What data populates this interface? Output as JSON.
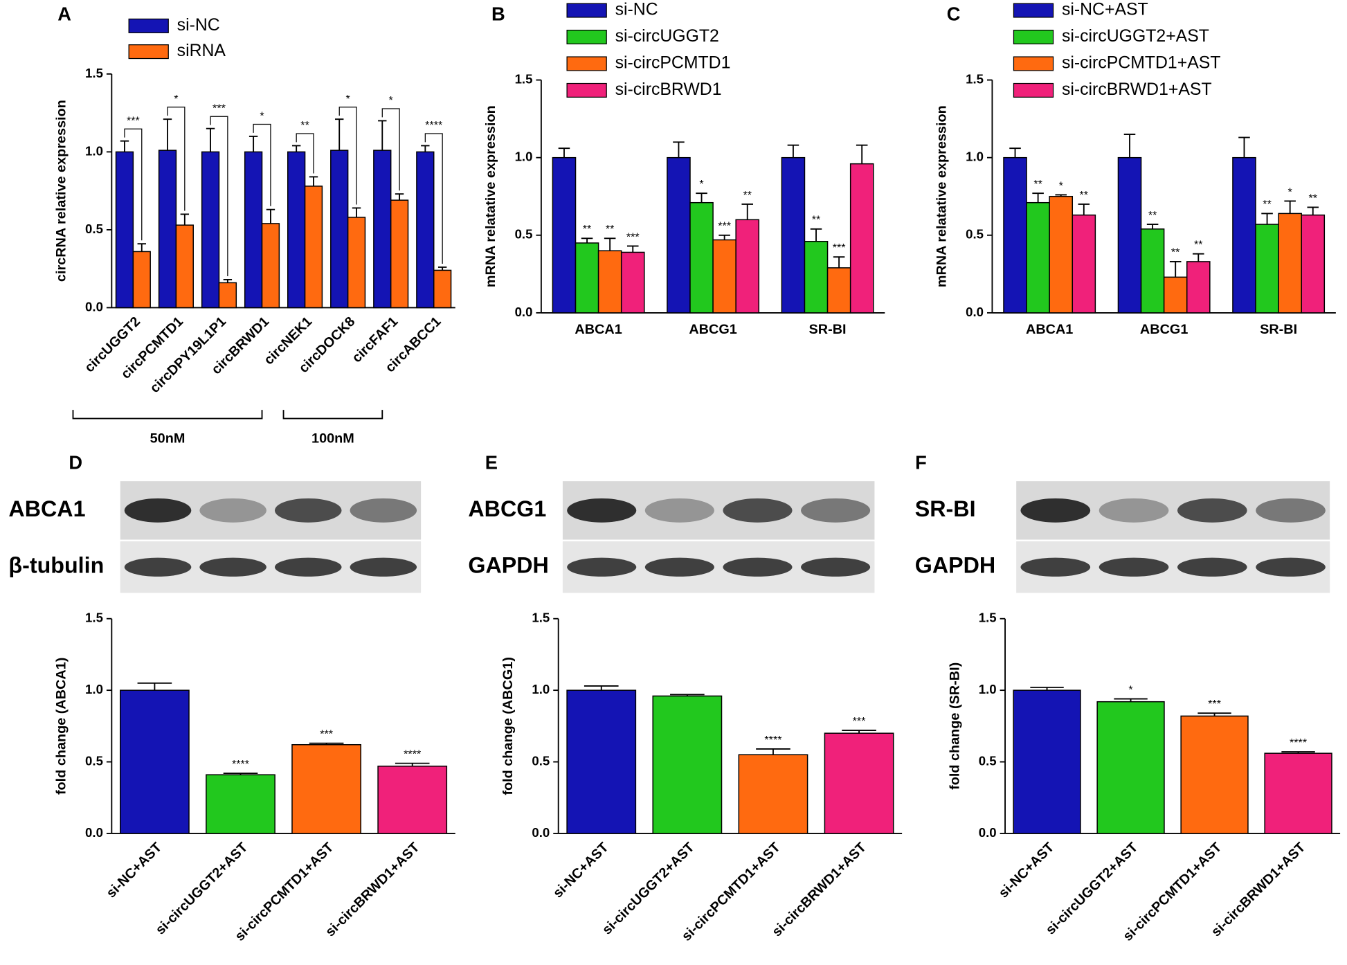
{
  "chart_data": [
    {
      "panel": "A",
      "type": "bar",
      "y_label": "circRNA relative expression",
      "categories": [
        "circUGGT2",
        "circPCMTD1",
        "circDPY19L1P1",
        "circBRWD1",
        "circNEK1",
        "circDOCK8",
        "circFAF1",
        "circABCC1"
      ],
      "category_groups": [
        "50nM",
        "50nM",
        "50nM",
        "50nM",
        "100nM",
        "100nM",
        null,
        null
      ],
      "series": [
        {
          "name": "si-NC",
          "color": "#1414b4",
          "values": [
            1.0,
            1.01,
            1.0,
            1.0,
            1.0,
            1.01,
            1.01,
            1.0
          ],
          "errors": [
            0.07,
            0.2,
            0.15,
            0.1,
            0.04,
            0.2,
            0.19,
            0.04
          ]
        },
        {
          "name": "siRNA",
          "color": "#ff6a10",
          "values": [
            0.36,
            0.53,
            0.16,
            0.54,
            0.78,
            0.58,
            0.69,
            0.24
          ],
          "errors": [
            0.05,
            0.07,
            0.02,
            0.09,
            0.06,
            0.06,
            0.04,
            0.02
          ],
          "significance": [
            "***",
            "*",
            "***",
            "*",
            "**",
            "*",
            "*",
            "****"
          ]
        }
      ],
      "ylim": [
        0,
        1.5
      ],
      "yticks": [
        {
          "value": 0,
          "label": "0.0"
        },
        0.5,
        {
          "value": 1,
          "label": "1.0"
        },
        1.5
      ]
    },
    {
      "panel": "B",
      "type": "bar",
      "y_label": "mRNA relatative expression",
      "categories": [
        "ABCA1",
        "ABCG1",
        "SR-BI"
      ],
      "series": [
        {
          "name": "si-NC",
          "color": "#1414b4",
          "values": [
            1.0,
            1.0,
            1.0
          ],
          "errors": [
            0.06,
            0.1,
            0.08
          ]
        },
        {
          "name": "si-circUGGT2",
          "color": "#22c81e",
          "values": [
            0.45,
            0.71,
            0.46
          ],
          "errors": [
            0.03,
            0.06,
            0.08
          ],
          "significance": [
            "**",
            "*",
            "**"
          ]
        },
        {
          "name": "si-circPCMTD1",
          "color": "#ff6a10",
          "values": [
            0.4,
            0.47,
            0.29
          ],
          "errors": [
            0.08,
            0.03,
            0.07
          ],
          "significance": [
            "**",
            "***",
            "***"
          ]
        },
        {
          "name": "si-circBRWD1",
          "color": "#f0217a",
          "values": [
            0.39,
            0.6,
            0.96
          ],
          "errors": [
            0.04,
            0.1,
            0.12
          ],
          "significance": [
            "***",
            "**",
            null
          ]
        }
      ],
      "ylim": [
        0,
        1.5
      ],
      "yticks": [
        {
          "value": 0,
          "label": "0.0"
        },
        0.5,
        {
          "value": 1,
          "label": "1.0"
        },
        1.5
      ]
    },
    {
      "panel": "C",
      "type": "bar",
      "y_label": "mRNA relatative expression",
      "categories": [
        "ABCA1",
        "ABCG1",
        "SR-BI"
      ],
      "series": [
        {
          "name": "si-NC+AST",
          "color": "#1414b4",
          "values": [
            1.0,
            1.0,
            1.0
          ],
          "errors": [
            0.06,
            0.15,
            0.13
          ]
        },
        {
          "name": "si-circUGGT2+AST",
          "color": "#22c81e",
          "values": [
            0.71,
            0.54,
            0.57
          ],
          "errors": [
            0.06,
            0.03,
            0.07
          ],
          "significance": [
            "**",
            "**",
            "**"
          ]
        },
        {
          "name": "si-circPCMTD1+AST",
          "color": "#ff6a10",
          "values": [
            0.75,
            0.23,
            0.64
          ],
          "errors": [
            0.01,
            0.1,
            0.08
          ],
          "significance": [
            "*",
            "**",
            "*"
          ]
        },
        {
          "name": "si-circBRWD1+AST",
          "color": "#f0217a",
          "values": [
            0.63,
            0.33,
            0.63
          ],
          "errors": [
            0.07,
            0.05,
            0.05
          ],
          "significance": [
            "**",
            "**",
            "**"
          ]
        }
      ],
      "ylim": [
        0,
        1.5
      ],
      "yticks": [
        {
          "value": 0,
          "label": "0.0"
        },
        0.5,
        {
          "value": 1,
          "label": "1.0"
        },
        1.5
      ]
    },
    {
      "panel": "D",
      "type": "bar",
      "y_label": "fold change (ABCA1)",
      "blot_labels": [
        "ABCA1",
        "β-tubulin"
      ],
      "categories": [
        "si-NC+AST",
        "si-circUGGT2+AST",
        "si-circPCMTD1+AST",
        "si-circBRWD1+AST"
      ],
      "colors": [
        "#1414b4",
        "#22c81e",
        "#ff6a10",
        "#f0217a"
      ],
      "values": [
        1.0,
        0.41,
        0.62,
        0.47
      ],
      "errors": [
        0.05,
        0.01,
        0.01,
        0.02
      ],
      "significance": [
        null,
        "****",
        "***",
        "****"
      ],
      "ylim": [
        0,
        1.5
      ],
      "yticks": [
        {
          "value": 0,
          "label": "0.0"
        },
        0.5,
        {
          "value": 1,
          "label": "1.0"
        },
        1.5
      ]
    },
    {
      "panel": "E",
      "type": "bar",
      "y_label": "fold change (ABCG1)",
      "blot_labels": [
        "ABCG1",
        "GAPDH"
      ],
      "categories": [
        "si-NC+AST",
        "si-circUGGT2+AST",
        "si-circPCMTD1+AST",
        "si-circBRWD1+AST"
      ],
      "colors": [
        "#1414b4",
        "#22c81e",
        "#ff6a10",
        "#f0217a"
      ],
      "values": [
        1.0,
        0.96,
        0.55,
        0.7
      ],
      "errors": [
        0.03,
        0.01,
        0.04,
        0.02
      ],
      "significance": [
        null,
        null,
        "****",
        "***"
      ],
      "ylim": [
        0,
        1.5
      ],
      "yticks": [
        {
          "value": 0,
          "label": "0.0"
        },
        0.5,
        {
          "value": 1,
          "label": "1.0"
        },
        1.5
      ]
    },
    {
      "panel": "F",
      "type": "bar",
      "y_label": "fold change (SR-BI)",
      "blot_labels": [
        "SR-BI",
        "GAPDH"
      ],
      "categories": [
        "si-NC+AST",
        "si-circUGGT2+AST",
        "si-circPCMTD1+AST",
        "si-circBRWD1+AST"
      ],
      "colors": [
        "#1414b4",
        "#22c81e",
        "#ff6a10",
        "#f0217a"
      ],
      "values": [
        1.0,
        0.92,
        0.82,
        0.56
      ],
      "errors": [
        0.02,
        0.02,
        0.02,
        0.01
      ],
      "significance": [
        null,
        "*",
        "***",
        "****"
      ],
      "ylim": [
        0,
        1.5
      ],
      "yticks": [
        {
          "value": 0,
          "label": "0.0"
        },
        0.5,
        {
          "value": 1,
          "label": "1.0"
        },
        1.5
      ]
    }
  ]
}
